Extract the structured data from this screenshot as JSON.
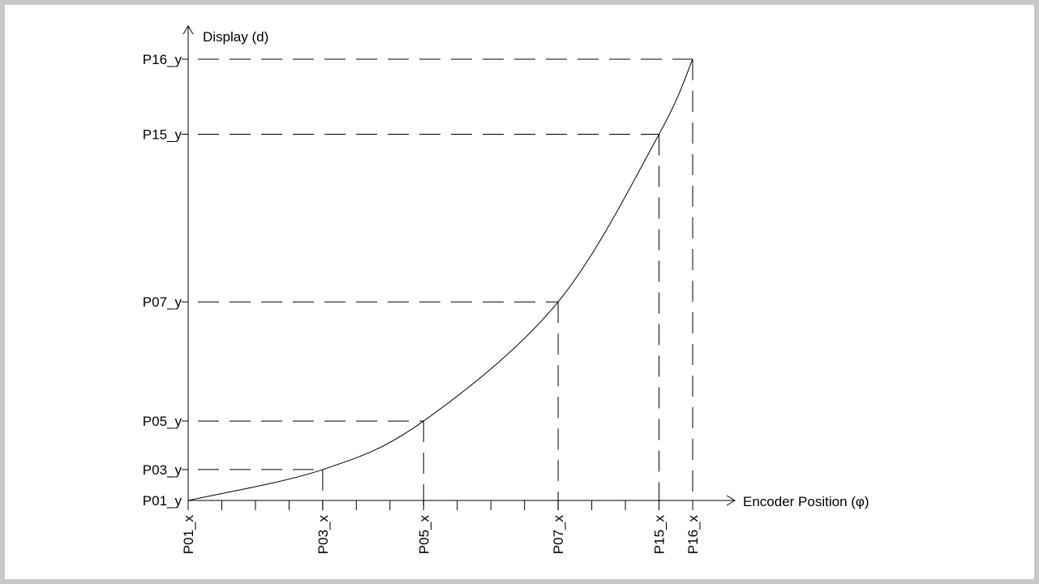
{
  "colors": {
    "frame": "#c8c8c8",
    "stroke": "#000000",
    "background": "#ffffff"
  },
  "axes": {
    "y_label": "Display (d)",
    "x_label": "Encoder Position (φ)"
  },
  "chart_data": {
    "type": "line",
    "title": "",
    "xlabel": "Encoder Position (φ)",
    "ylabel": "Display (d)",
    "x_tick_labels": [
      "P01_x",
      "P03_x",
      "P05_x",
      "P07_x",
      "P15_x",
      "P16_x"
    ],
    "y_tick_labels": [
      "P16_y",
      "P15_y",
      "P07_y",
      "P05_y",
      "P03_y",
      "P01_y"
    ],
    "points": [
      {
        "x_label": "P01_x",
        "y_label": "P01_y",
        "x": 0,
        "y": 0
      },
      {
        "x_label": "P03_x",
        "y_label": "P03_y",
        "x": 4,
        "y": 7
      },
      {
        "x_label": "P05_x",
        "y_label": "P05_y",
        "x": 7,
        "y": 18
      },
      {
        "x_label": "P07_x",
        "y_label": "P07_y",
        "x": 11,
        "y": 45
      },
      {
        "x_label": "P15_x",
        "y_label": "P15_y",
        "x": 14,
        "y": 83
      },
      {
        "x_label": "P16_x",
        "y_label": "P16_y",
        "x": 15,
        "y": 100
      }
    ],
    "minor_ticks": 15,
    "xlim": [
      0,
      15
    ],
    "ylim": [
      0,
      100
    ],
    "grid": false,
    "projection_lines": "dashed"
  }
}
